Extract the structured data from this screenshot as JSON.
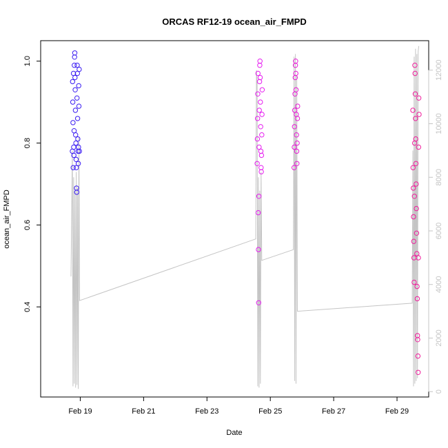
{
  "chart_data": {
    "type": "scatter",
    "title": "ORCAS RF12-19 ocean_air_FMPD",
    "xlabel": "Date",
    "ylabel": "ocean_air_FMPD",
    "xlim": [
      "2016-02-17T18:00",
      "2016-03-01T00:00"
    ],
    "ylim": [
      0.18,
      1.05
    ],
    "y2lim": [
      -200,
      13100
    ],
    "x_ticks": [
      {
        "value": "2016-02-19",
        "label": "Feb 19"
      },
      {
        "value": "2016-02-21",
        "label": "Feb 21"
      },
      {
        "value": "2016-02-23",
        "label": "Feb 23"
      },
      {
        "value": "2016-02-25",
        "label": "Feb 25"
      },
      {
        "value": "2016-02-27",
        "label": "Feb 27"
      },
      {
        "value": "2016-02-29",
        "label": "Feb 29"
      }
    ],
    "y_ticks": [
      {
        "value": 0.4,
        "label": "0.4"
      },
      {
        "value": 0.6,
        "label": "0.6"
      },
      {
        "value": 0.8,
        "label": "0.8"
      },
      {
        "value": 1.0,
        "label": "1.0"
      }
    ],
    "y2_ticks": [
      {
        "value": 0,
        "label": "0"
      },
      {
        "value": 2000,
        "label": "2000"
      },
      {
        "value": 4000,
        "label": "4000"
      },
      {
        "value": 6000,
        "label": "6000"
      },
      {
        "value": 8000,
        "label": "8000"
      },
      {
        "value": 10000,
        "label": "10000"
      },
      {
        "value": 12000,
        "label": "12000"
      }
    ],
    "grid": false,
    "legend": "none",
    "colors": {
      "flight_1": "#3a1cf2",
      "flight_2": "#e61cf0",
      "flight_3": "#e81cd6",
      "flight_4": "#f01c9c",
      "altitude_line": "#c4c4c4"
    },
    "series": [
      {
        "color": "#3a1cf2",
        "points": [
          [
            "2016-02-18T18:00",
            0.78
          ],
          [
            "2016-02-18T18:10",
            0.95
          ],
          [
            "2016-02-18T18:20",
            0.9
          ],
          [
            "2016-02-18T18:30",
            0.85
          ],
          [
            "2016-02-18T18:40",
            0.74
          ],
          [
            "2016-02-18T18:50",
            0.97
          ],
          [
            "2016-02-18T19:00",
            0.79
          ],
          [
            "2016-02-18T19:10",
            0.77
          ],
          [
            "2016-02-18T19:20",
            0.83
          ],
          [
            "2016-02-18T19:30",
            0.99
          ],
          [
            "2016-02-18T19:40",
            1.01
          ],
          [
            "2016-02-18T19:50",
            1.02
          ],
          [
            "2016-02-18T20:00",
            0.96
          ],
          [
            "2016-02-18T20:10",
            0.93
          ],
          [
            "2016-02-18T20:20",
            0.88
          ],
          [
            "2016-02-18T20:30",
            0.82
          ],
          [
            "2016-02-18T20:40",
            0.8
          ],
          [
            "2016-02-18T20:50",
            0.76
          ],
          [
            "2016-02-18T21:00",
            0.74
          ],
          [
            "2016-02-18T21:10",
            0.69
          ],
          [
            "2016-02-18T21:20",
            0.68
          ],
          [
            "2016-02-18T21:30",
            0.91
          ],
          [
            "2016-02-18T21:40",
            0.99
          ],
          [
            "2016-02-18T21:50",
            0.97
          ],
          [
            "2016-02-18T22:00",
            0.86
          ],
          [
            "2016-02-18T22:10",
            0.81
          ],
          [
            "2016-02-18T22:20",
            0.78
          ],
          [
            "2016-02-18T22:30",
            0.75
          ],
          [
            "2016-02-18T22:40",
            0.79
          ],
          [
            "2016-02-18T22:50",
            0.94
          ],
          [
            "2016-02-18T23:00",
            0.89
          ],
          [
            "2016-02-18T23:10",
            0.98
          ],
          [
            "2016-02-18T23:20",
            0.78
          ]
        ]
      },
      {
        "color": "#e61cf0",
        "points": [
          [
            "2016-02-24T14:00",
            0.75
          ],
          [
            "2016-02-24T14:10",
            0.81
          ],
          [
            "2016-02-24T14:20",
            0.86
          ],
          [
            "2016-02-24T14:30",
            0.92
          ],
          [
            "2016-02-24T14:40",
            0.97
          ],
          [
            "2016-02-24T14:50",
            0.63
          ],
          [
            "2016-02-24T15:00",
            0.54
          ],
          [
            "2016-02-24T15:10",
            0.41
          ],
          [
            "2016-02-24T15:20",
            0.67
          ],
          [
            "2016-02-24T15:30",
            0.79
          ],
          [
            "2016-02-24T15:40",
            0.88
          ],
          [
            "2016-02-24T15:50",
            0.95
          ],
          [
            "2016-02-24T16:00",
            0.99
          ],
          [
            "2016-02-24T16:10",
            1.0
          ],
          [
            "2016-02-24T16:20",
            0.96
          ],
          [
            "2016-02-24T16:30",
            0.9
          ],
          [
            "2016-02-24T16:40",
            0.84
          ],
          [
            "2016-02-24T16:50",
            0.78
          ],
          [
            "2016-02-24T17:00",
            0.74
          ],
          [
            "2016-02-24T17:10",
            0.73
          ],
          [
            "2016-02-24T17:20",
            0.77
          ],
          [
            "2016-02-24T17:30",
            0.82
          ],
          [
            "2016-02-24T17:40",
            0.87
          ],
          [
            "2016-02-24T17:50",
            0.93
          ]
        ]
      },
      {
        "color": "#e81cd6",
        "points": [
          [
            "2016-02-25T18:00",
            0.74
          ],
          [
            "2016-02-25T18:10",
            0.79
          ],
          [
            "2016-02-25T18:20",
            0.84
          ],
          [
            "2016-02-25T18:30",
            0.88
          ],
          [
            "2016-02-25T18:40",
            0.92
          ],
          [
            "2016-02-25T18:50",
            0.96
          ],
          [
            "2016-02-25T19:00",
            0.99
          ],
          [
            "2016-02-25T19:10",
            1.0
          ],
          [
            "2016-02-25T19:20",
            0.97
          ],
          [
            "2016-02-25T19:30",
            0.93
          ],
          [
            "2016-02-25T19:40",
            0.87
          ],
          [
            "2016-02-25T19:50",
            0.82
          ],
          [
            "2016-02-25T20:00",
            0.78
          ],
          [
            "2016-02-25T20:10",
            0.75
          ],
          [
            "2016-02-25T20:20",
            0.8
          ],
          [
            "2016-02-25T20:30",
            0.86
          ],
          [
            "2016-02-25T20:40",
            0.89
          ]
        ]
      },
      {
        "color": "#f01c9c",
        "points": [
          [
            "2016-02-29T12:00",
            0.88
          ],
          [
            "2016-02-29T12:10",
            0.74
          ],
          [
            "2016-02-29T12:20",
            0.69
          ],
          [
            "2016-02-29T12:30",
            0.62
          ],
          [
            "2016-02-29T12:40",
            0.56
          ],
          [
            "2016-02-29T12:50",
            0.52
          ],
          [
            "2016-02-29T13:00",
            0.46
          ],
          [
            "2016-02-29T13:10",
            0.67
          ],
          [
            "2016-02-29T13:20",
            0.8
          ],
          [
            "2016-02-29T13:30",
            0.99
          ],
          [
            "2016-02-29T13:40",
            0.97
          ],
          [
            "2016-02-29T13:50",
            0.92
          ],
          [
            "2016-02-29T14:00",
            0.86
          ],
          [
            "2016-02-29T14:10",
            0.81
          ],
          [
            "2016-02-29T14:20",
            0.75
          ],
          [
            "2016-02-29T14:30",
            0.7
          ],
          [
            "2016-02-29T14:40",
            0.64
          ],
          [
            "2016-02-29T14:50",
            0.58
          ],
          [
            "2016-02-29T15:00",
            0.53
          ],
          [
            "2016-02-29T15:10",
            0.45
          ],
          [
            "2016-02-29T15:20",
            0.42
          ],
          [
            "2016-02-29T15:30",
            0.33
          ],
          [
            "2016-02-29T15:40",
            0.32
          ],
          [
            "2016-02-29T15:50",
            0.28
          ],
          [
            "2016-02-29T16:00",
            0.24
          ],
          [
            "2016-02-29T16:10",
            0.52
          ],
          [
            "2016-02-29T16:20",
            0.79
          ],
          [
            "2016-02-29T16:30",
            0.91
          ],
          [
            "2016-02-29T16:40",
            0.87
          ]
        ]
      }
    ],
    "altitude_line": {
      "color": "#c4c4c4",
      "axis": "right",
      "points": [
        [
          "2016-02-18T17:00",
          4300
        ],
        [
          "2016-02-18T18:00",
          9000
        ],
        [
          "2016-02-18T18:30",
          200
        ],
        [
          "2016-02-18T19:00",
          8000
        ],
        [
          "2016-02-18T19:30",
          300
        ],
        [
          "2016-02-18T20:00",
          7500
        ],
        [
          "2016-02-18T20:30",
          150
        ],
        [
          "2016-02-18T21:00",
          8200
        ],
        [
          "2016-02-18T21:30",
          250
        ],
        [
          "2016-02-18T22:00",
          7600
        ],
        [
          "2016-02-18T22:30",
          100
        ],
        [
          "2016-02-18T23:00",
          9500
        ],
        [
          "2016-02-18T23:30",
          3400
        ],
        [
          "2016-02-24T13:00",
          5700
        ],
        [
          "2016-02-24T13:30",
          12000
        ],
        [
          "2016-02-24T14:00",
          11500
        ],
        [
          "2016-02-24T14:30",
          200
        ],
        [
          "2016-02-24T15:00",
          8000
        ],
        [
          "2016-02-24T15:30",
          150
        ],
        [
          "2016-02-24T16:00",
          7500
        ],
        [
          "2016-02-24T16:30",
          300
        ],
        [
          "2016-02-24T17:00",
          8200
        ],
        [
          "2016-02-24T17:30",
          4900
        ],
        [
          "2016-02-25T17:30",
          5300
        ],
        [
          "2016-02-25T18:00",
          12500
        ],
        [
          "2016-02-25T18:30",
          400
        ],
        [
          "2016-02-25T19:00",
          12600
        ],
        [
          "2016-02-25T19:30",
          300
        ],
        [
          "2016-02-25T20:00",
          11800
        ],
        [
          "2016-02-25T20:30",
          3000
        ],
        [
          "2016-02-29T11:30",
          3300
        ],
        [
          "2016-02-29T12:00",
          9000
        ],
        [
          "2016-02-29T12:30",
          200
        ],
        [
          "2016-02-29T13:00",
          12500
        ],
        [
          "2016-02-29T13:30",
          300
        ],
        [
          "2016-02-29T14:00",
          12800
        ],
        [
          "2016-02-29T14:30",
          400
        ],
        [
          "2016-02-29T15:00",
          12600
        ],
        [
          "2016-02-29T15:30",
          500
        ],
        [
          "2016-02-29T16:00",
          12700
        ],
        [
          "2016-02-29T16:30",
          12900
        ]
      ]
    }
  }
}
